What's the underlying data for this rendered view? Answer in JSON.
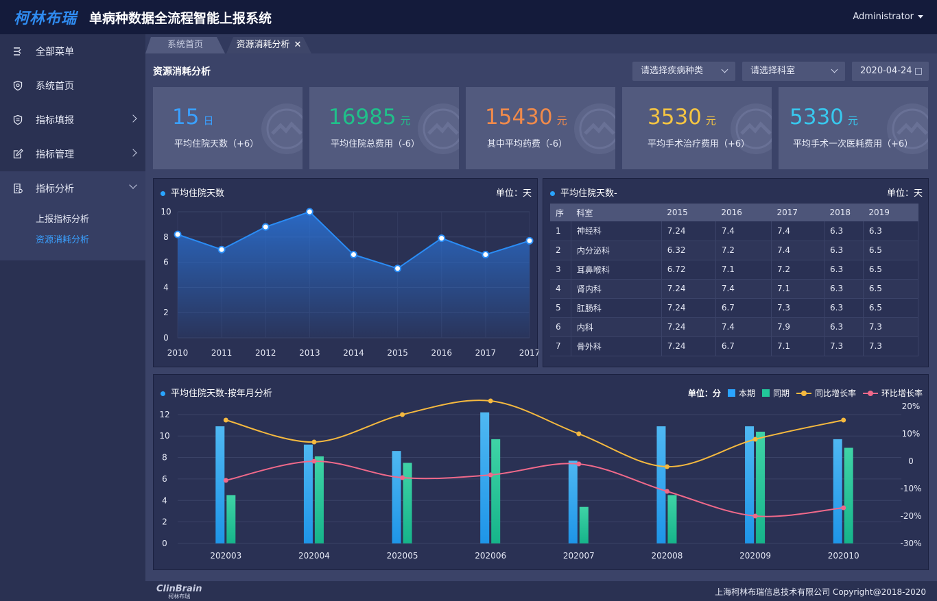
{
  "header": {
    "logo": "柯林布瑞",
    "title": "单病种数据全流程智能上报系统",
    "user": "Administrator"
  },
  "sidebar": {
    "items": [
      {
        "label": "全部菜单",
        "icon": "menu-icon"
      },
      {
        "label": "系统首页",
        "icon": "home-shield-icon"
      },
      {
        "label": "指标填报",
        "icon": "report-icon"
      },
      {
        "label": "指标管理",
        "icon": "edit-icon"
      },
      {
        "label": "指标分析",
        "icon": "analysis-icon"
      }
    ],
    "subitems": [
      {
        "label": "上报指标分析"
      },
      {
        "label": "资源消耗分析"
      }
    ]
  },
  "tabs": [
    {
      "label": "系统首页"
    },
    {
      "label": "资源消耗分析"
    }
  ],
  "page": {
    "title": "资源消耗分析"
  },
  "filters": {
    "disease": "请选择疾病种类",
    "dept": "请选择科室",
    "date": "2020-04-24"
  },
  "cards": [
    {
      "value": "15",
      "unit": "日",
      "label": "平均住院天数（+6）",
      "color": "#3aa0ff"
    },
    {
      "value": "16985",
      "unit": "元",
      "label": "平均住院总费用（-6）",
      "color": "#20c08a"
    },
    {
      "value": "15430",
      "unit": "元",
      "label": "其中平均药费（-6）",
      "color": "#f08a4b"
    },
    {
      "value": "3530",
      "unit": "元",
      "label": "平均手术治疗费用（+6）",
      "color": "#f5c542"
    },
    {
      "value": "5330",
      "unit": "元",
      "label": "平均手术一次医耗费用（+6）",
      "color": "#38c8ee"
    }
  ],
  "line_panel": {
    "title": "平均住院天数",
    "unit": "单位：天"
  },
  "table_panel": {
    "title": "平均住院天数-",
    "unit": "单位：天",
    "columns": [
      "序",
      "科室",
      "2015",
      "2016",
      "2017",
      "2018",
      "2019"
    ],
    "rows": [
      [
        "1",
        "神经科",
        "7.24",
        "7.4",
        "7.4",
        "6.3",
        "6.3"
      ],
      [
        "2",
        "内分泌科",
        "6.32",
        "7.2",
        "7.4",
        "6.3",
        "6.5"
      ],
      [
        "3",
        "耳鼻喉科",
        "6.72",
        "7.1",
        "7.2",
        "6.3",
        "6.5"
      ],
      [
        "4",
        "肾内科",
        "7.24",
        "7.4",
        "7.1",
        "6.3",
        "6.5"
      ],
      [
        "5",
        "肛肠科",
        "7.24",
        "6.7",
        "7.3",
        "6.3",
        "6.5"
      ],
      [
        "6",
        "内科",
        "7.24",
        "7.4",
        "7.9",
        "6.3",
        "7.3"
      ],
      [
        "7",
        "骨外科",
        "7.24",
        "6.7",
        "7.1",
        "7.3",
        "7.3"
      ]
    ]
  },
  "bar_panel": {
    "title": "平均住院天数-按年月分析",
    "unit": "单位：分",
    "legend": [
      "本期",
      "同期",
      "同比增长率",
      "环比增长率"
    ]
  },
  "footer": {
    "logo": "ClinBrain",
    "logo_sub": "柯林布瑞",
    "copyright": "上海柯林布瑞信息技术有限公司 Copyright@2018-2020"
  },
  "colors": {
    "current": "#2aa4ff",
    "same_period": "#22c79a",
    "yoy": "#f5b93f",
    "mom": "#f0698a",
    "line": "#2a8cf5"
  },
  "chart_data": [
    {
      "type": "line",
      "x": [
        "2010",
        "2011",
        "2012",
        "2013",
        "2014",
        "2015",
        "2016",
        "2017",
        "2017"
      ],
      "values": [
        8.2,
        7.0,
        8.8,
        10.0,
        6.6,
        5.5,
        7.9,
        6.6,
        7.7
      ],
      "title": "平均住院天数",
      "yticks": [
        0,
        2,
        4,
        6,
        8,
        10
      ],
      "ylim": [
        0,
        10
      ]
    },
    {
      "type": "bar",
      "categories": [
        "202003",
        "202004",
        "202005",
        "202006",
        "202007",
        "202008",
        "202009",
        "202010"
      ],
      "series": [
        {
          "name": "本期",
          "values": [
            10.9,
            9.2,
            8.6,
            12.2,
            7.7,
            10.9,
            10.9,
            9.7
          ]
        },
        {
          "name": "同期",
          "values": [
            4.5,
            8.1,
            7.5,
            9.7,
            3.4,
            4.5,
            10.4,
            8.9
          ]
        }
      ],
      "lines": [
        {
          "name": "同比增长率",
          "values": [
            15,
            7,
            17,
            22,
            10,
            -2,
            8,
            15
          ]
        },
        {
          "name": "环比增长率",
          "values": [
            -7,
            0,
            -6,
            -5,
            -1,
            -11,
            -20,
            -17
          ]
        }
      ],
      "yticks": [
        0,
        2,
        4,
        6,
        8,
        10,
        12
      ],
      "ylim": [
        0,
        12.5
      ],
      "y2ticks": [
        "20%",
        "10%",
        "0",
        "-10%",
        "-20%",
        "-30%"
      ],
      "y2lim": [
        -30,
        20
      ]
    }
  ]
}
